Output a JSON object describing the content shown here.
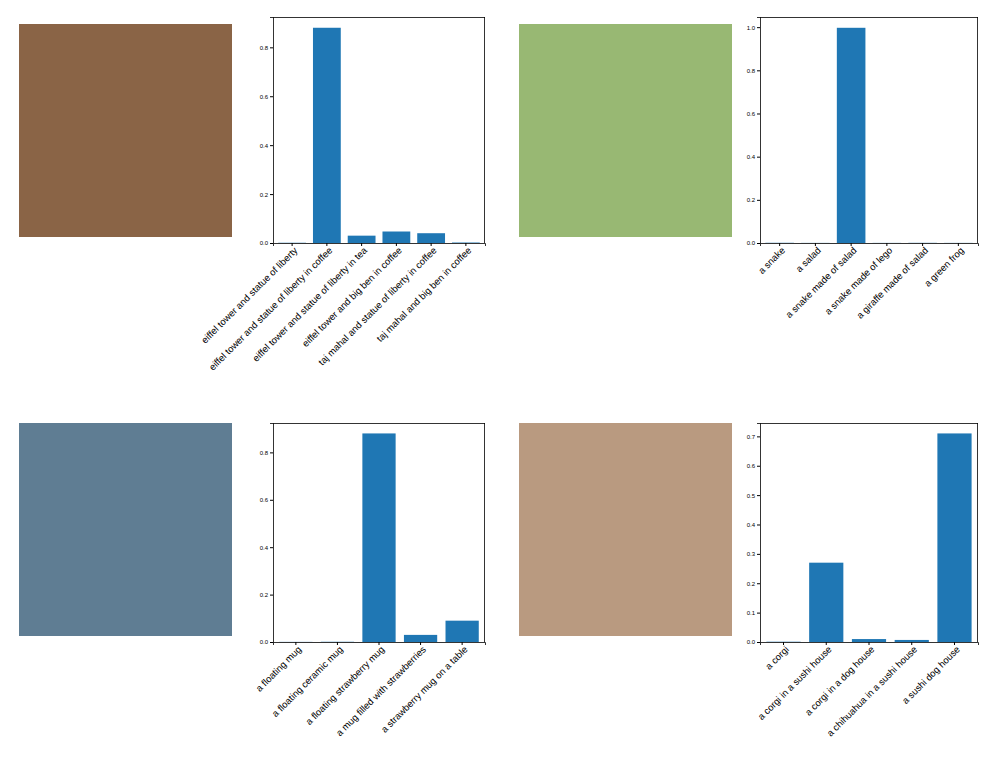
{
  "chart_data": [
    {
      "type": "bar",
      "categories": [
        "eiffel tower and statue of liberty",
        "eiffel tower and statue of liberty in coffee",
        "eiffel tower and statue of liberty in tea",
        "eiffel tower and big ben in coffee",
        "taj mahal and statue of liberty in coffee",
        "taj mahal and big ben in coffee"
      ],
      "values": [
        0.001,
        0.88,
        0.03,
        0.047,
        0.04,
        0.002
      ],
      "color": "#1f77b4",
      "ylim": [
        0,
        0.924
      ],
      "yticks": [
        {
          "value": 0,
          "label": "0.0"
        },
        0.2,
        0.4,
        0.6,
        0.8
      ]
    },
    {
      "type": "bar",
      "categories": [
        "a snake",
        "a salad",
        "a snake made of salad",
        "a snake made of lego",
        "a giraffe made of salad",
        "a green frog"
      ],
      "values": [
        0.001,
        0.0005,
        0.997,
        0.0005,
        0.0008,
        0.0005
      ],
      "color": "#1f77b4",
      "ylim": [
        0,
        1.047
      ],
      "yticks": [
        {
          "value": 0,
          "label": "0.0"
        },
        0.2,
        0.4,
        0.6,
        0.8,
        {
          "value": 1,
          "label": "1.0"
        }
      ]
    },
    {
      "type": "bar",
      "categories": [
        "a floating mug",
        "a floating ceramic mug",
        "a floating strawberry mug",
        "a mug filled with strawberries",
        "a strawberry mug on a table"
      ],
      "values": [
        0.0005,
        0.001,
        0.88,
        0.03,
        0.09
      ],
      "color": "#1f77b4",
      "ylim": [
        0,
        0.924
      ],
      "yticks": [
        {
          "value": 0,
          "label": "0.0"
        },
        0.2,
        0.4,
        0.6,
        0.8
      ]
    },
    {
      "type": "bar",
      "categories": [
        "a corgi",
        "a corgi in a sushi house",
        "a corgi in a dog house",
        "a chihuahua in a sushi house",
        "a sushi dog house"
      ],
      "values": [
        0.001,
        0.27,
        0.01,
        0.007,
        0.71
      ],
      "color": "#1f77b4",
      "ylim": [
        0,
        0.7455
      ],
      "yticks": [
        {
          "value": 0,
          "label": "0.0"
        },
        0.1,
        0.2,
        0.3,
        0.4,
        0.5,
        0.6,
        0.7
      ]
    }
  ]
}
